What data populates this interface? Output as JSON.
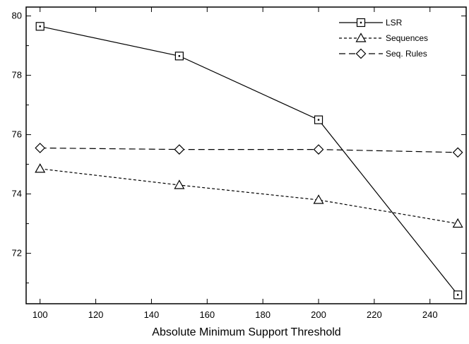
{
  "chart_data": {
    "type": "line",
    "title": "",
    "xlabel": "Absolute Minimum Support Threshold",
    "ylabel": "",
    "xlim": [
      95,
      253
    ],
    "ylim": [
      70.3,
      80.3
    ],
    "x_ticks": [
      100,
      120,
      140,
      160,
      180,
      200,
      220,
      240
    ],
    "y_ticks": [
      72,
      74,
      76,
      78,
      80
    ],
    "grid": false,
    "legend_position": "top-right",
    "x": [
      100,
      150,
      200,
      250
    ],
    "series": [
      {
        "name": "LSR",
        "values": [
          79.65,
          78.65,
          76.5,
          70.6
        ],
        "marker": "square",
        "dash": "solid",
        "color": "#000000"
      },
      {
        "name": "Sequences",
        "values": [
          74.85,
          74.3,
          73.8,
          73.0
        ],
        "marker": "triangle",
        "dash": "dotted",
        "color": "#000000"
      },
      {
        "name": "Seq. Rules",
        "values": [
          75.55,
          75.5,
          75.5,
          75.4
        ],
        "marker": "diamond",
        "dash": "dashed",
        "color": "#000000"
      }
    ]
  }
}
